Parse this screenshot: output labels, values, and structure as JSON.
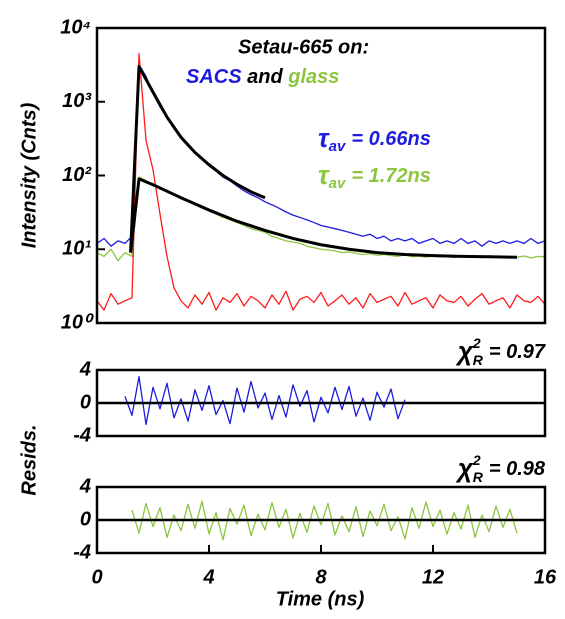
{
  "chart_data": [
    {
      "type": "line",
      "log_y": true,
      "title": "Setau-665 on:",
      "legend_conjunction": "and",
      "ylabel": "Intensity (Cnts)",
      "xlim": [
        0,
        16
      ],
      "ylim": [
        1,
        10000
      ],
      "yticks": [
        {
          "value": 1,
          "label": "10⁰"
        },
        {
          "value": 10,
          "label": "10¹"
        },
        {
          "value": 100,
          "label": "10²"
        },
        {
          "value": 1000,
          "label": "10³"
        },
        {
          "value": 10000,
          "label": "10⁴"
        }
      ],
      "x": [
        0,
        0.25,
        0.5,
        0.75,
        1,
        1.25,
        1.5,
        1.75,
        2,
        2.25,
        2.5,
        2.75,
        3,
        3.25,
        3.5,
        3.75,
        4,
        4.25,
        4.5,
        4.75,
        5,
        5.25,
        5.5,
        5.75,
        6,
        6.25,
        6.5,
        6.75,
        7,
        7.25,
        7.5,
        7.75,
        8,
        8.25,
        8.5,
        8.75,
        9,
        9.25,
        9.5,
        9.75,
        10,
        10.25,
        10.5,
        10.75,
        11,
        11.25,
        11.5,
        11.75,
        12,
        12.25,
        12.5,
        12.75,
        13,
        13.25,
        13.5,
        13.75,
        14,
        14.25,
        14.5,
        14.75,
        15,
        15.25,
        15.5,
        15.75,
        16
      ],
      "series": [
        {
          "name": "SACS",
          "color": "#1c1ce0",
          "values": [
            12,
            14,
            11,
            13,
            12,
            15,
            3200,
            2200,
            1300,
            850,
            600,
            430,
            320,
            250,
            200,
            165,
            135,
            115,
            95,
            85,
            72,
            62,
            55,
            50,
            44,
            40,
            36,
            32,
            29,
            27,
            25,
            23,
            21,
            20,
            19,
            18,
            17,
            16,
            15,
            16,
            14,
            15,
            13,
            14,
            13,
            14,
            12,
            13,
            14,
            12,
            13,
            12,
            14,
            12,
            13,
            11,
            13,
            12,
            13,
            12,
            13,
            12,
            14,
            12,
            13
          ]
        },
        {
          "name": "glass",
          "color": "#8cc63f",
          "values": [
            9,
            8,
            10,
            7,
            9,
            8,
            95,
            85,
            75,
            68,
            60,
            54,
            48,
            44,
            40,
            36,
            33,
            30,
            27,
            25,
            23,
            21,
            19,
            18,
            17,
            15,
            14,
            13,
            12.5,
            12,
            11,
            10.5,
            10,
            9.8,
            9.5,
            9,
            9.2,
            8.8,
            8.5,
            8.7,
            8.3,
            8.5,
            8.2,
            8,
            8.4,
            7.9,
            8.1,
            7.8,
            8.2,
            7.9,
            8,
            7.7,
            8.1,
            7.8,
            8,
            7.6,
            8.2,
            7.9,
            7.7,
            8,
            7.8,
            8.1,
            7.6,
            8,
            7.9
          ]
        },
        {
          "color": "#ff1a1a",
          "values": [
            2,
            1.5,
            2.5,
            1.8,
            2,
            2.2,
            4500,
            300,
            120,
            30,
            8,
            3,
            2,
            1.6,
            2.4,
            1.8,
            2.6,
            1.5,
            2.2,
            1.9,
            2.5,
            1.7,
            2.3,
            2,
            1.6,
            2.4,
            1.8,
            2.7,
            1.5,
            2.1,
            2.3,
            1.9,
            2.6,
            1.7,
            2,
            2.4,
            1.8,
            2.2,
            1.6,
            2.5,
            1.9,
            2.1,
            2.3,
            1.7,
            2.6,
            1.8,
            2,
            2.2,
            1.6,
            2.4,
            2,
            1.9,
            2.3,
            1.7,
            2.1,
            2.5,
            1.8,
            2,
            2.2,
            1.6,
            2.4,
            2,
            1.9,
            2.3,
            1.8
          ]
        },
        {
          "color": "#000000",
          "fit": true,
          "x": [
            1.2,
            1.5,
            2,
            2.5,
            3,
            3.5,
            4,
            4.5,
            5,
            5.5,
            6
          ],
          "values": [
            9,
            3000,
            1350,
            620,
            330,
            205,
            140,
            100,
            76,
            60,
            50
          ]
        },
        {
          "color": "#000000",
          "fit": true,
          "x": [
            1.2,
            1.5,
            2,
            3,
            4,
            5,
            6,
            7,
            8,
            9,
            10,
            11,
            12,
            13,
            14,
            15
          ],
          "values": [
            9,
            90,
            75,
            50,
            34,
            24,
            18,
            14,
            11.5,
            10,
            9,
            8.5,
            8.2,
            8,
            7.9,
            7.8
          ]
        }
      ],
      "annotations": [
        {
          "base": "τ",
          "sub": "av",
          "text": "= 0.66ns",
          "color": "#1c1ce0"
        },
        {
          "base": "τ",
          "sub": "av",
          "text": "= 1.72ns",
          "color": "#8cc63f"
        }
      ]
    },
    {
      "type": "line",
      "ylabel": "Resids.",
      "xlim": [
        0,
        16
      ],
      "ylim": [
        -4,
        4
      ],
      "yticks": [
        -4,
        0,
        4
      ],
      "zero_line": true,
      "series": [
        {
          "color": "#1c1ce0",
          "x": [
            1,
            1.25,
            1.5,
            1.75,
            2,
            2.25,
            2.5,
            2.75,
            3,
            3.25,
            3.5,
            3.75,
            4,
            4.25,
            4.5,
            4.75,
            5,
            5.25,
            5.5,
            5.75,
            6,
            6.25,
            6.5,
            6.75,
            7,
            7.25,
            7.5,
            7.75,
            8,
            8.25,
            8.5,
            8.75,
            9,
            9.25,
            9.5,
            9.75,
            10,
            10.25,
            10.5,
            10.75,
            11
          ],
          "values": [
            0.8,
            -1.5,
            3.2,
            -2.6,
            1.9,
            -0.7,
            2.4,
            -1.8,
            0.5,
            -2.2,
            1.6,
            -0.9,
            2.1,
            -1.4,
            0.3,
            -2.5,
            1.8,
            -1.1,
            2.6,
            -0.6,
            1.2,
            -2.0,
            0.9,
            -1.7,
            2.2,
            -0.4,
            1.5,
            -2.3,
            0.7,
            -1.2,
            1.9,
            -0.8,
            2.0,
            -1.6,
            0.6,
            -2.1,
            1.3,
            -0.5,
            1.7,
            -1.9,
            0.4
          ]
        }
      ],
      "annotations": [
        {
          "base": "χ",
          "sup": "2",
          "sub": "R",
          "text": "= 0.97",
          "color": "#000000"
        }
      ]
    },
    {
      "type": "line",
      "xlabel": "Time (ns)",
      "xlim": [
        0,
        16
      ],
      "ylim": [
        -4,
        4
      ],
      "yticks": [
        -4,
        0,
        4
      ],
      "xticks": [
        0,
        4,
        8,
        12,
        16
      ],
      "zero_line": true,
      "series": [
        {
          "color": "#8cc63f",
          "x": [
            1.25,
            1.5,
            1.75,
            2,
            2.25,
            2.5,
            2.75,
            3,
            3.25,
            3.5,
            3.75,
            4,
            4.25,
            4.5,
            4.75,
            5,
            5.25,
            5.5,
            5.75,
            6,
            6.25,
            6.5,
            6.75,
            7,
            7.25,
            7.5,
            7.75,
            8,
            8.25,
            8.5,
            8.75,
            9,
            9.25,
            9.5,
            9.75,
            10,
            10.25,
            10.5,
            10.75,
            11,
            11.25,
            11.5,
            11.75,
            12,
            12.25,
            12.5,
            12.75,
            13,
            13.25,
            13.5,
            13.75,
            14,
            14.25,
            14.5,
            14.75,
            15
          ],
          "values": [
            1.2,
            -1.6,
            2.0,
            -0.8,
            1.5,
            -2.1,
            0.6,
            -1.3,
            1.9,
            -1.0,
            2.3,
            -1.7,
            0.9,
            -2.4,
            1.4,
            -0.5,
            1.8,
            -1.9,
            0.7,
            -1.2,
            2.1,
            -0.9,
            1.3,
            -2.2,
            0.8,
            -1.5,
            1.7,
            -0.6,
            2.0,
            -1.8,
            0.5,
            -1.4,
            1.6,
            -2.0,
            1.1,
            -0.7,
            1.9,
            -1.3,
            0.4,
            -2.3,
            1.5,
            -1.0,
            2.2,
            -0.8,
            1.2,
            -1.7,
            0.9,
            -1.1,
            1.8,
            -2.1,
            0.6,
            -1.4,
            1.7,
            -0.9,
            1.3,
            -1.6
          ]
        }
      ],
      "annotations": [
        {
          "base": "χ",
          "sup": "2",
          "sub": "R",
          "text": "= 0.98",
          "color": "#000000"
        }
      ]
    }
  ]
}
